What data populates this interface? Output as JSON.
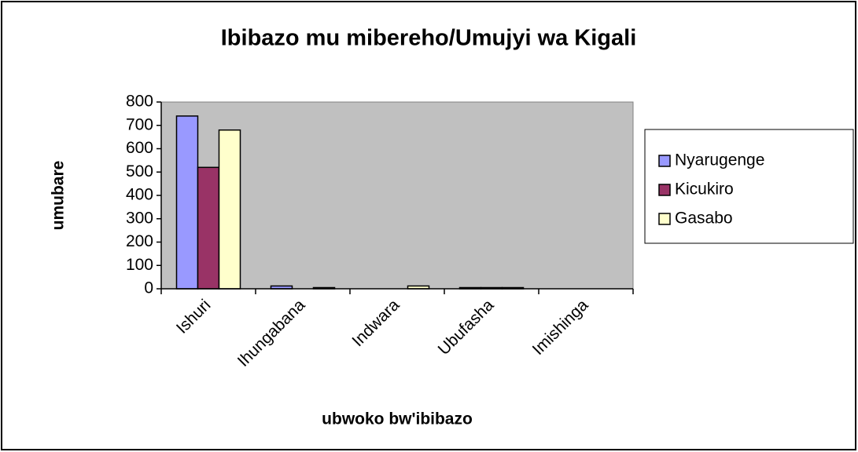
{
  "chart_data": {
    "type": "bar",
    "title": "Ibibazo mu mibereho/Umujyi wa Kigali",
    "x_label": "ubwoko bw'ibibazo",
    "y_label": "umubare",
    "categories": [
      "Ishuri",
      "Ihungabana",
      "Indwara",
      "Ubufasha",
      "Imishinga"
    ],
    "series": [
      {
        "name": "Nyarugenge",
        "color": "#9999ff",
        "values": [
          740,
          12,
          0,
          5,
          0
        ]
      },
      {
        "name": "Kicukiro",
        "color": "#993366",
        "values": [
          520,
          0,
          0,
          5,
          0
        ]
      },
      {
        "name": "Gasabo",
        "color": "#ffffcc",
        "values": [
          680,
          5,
          12,
          5,
          0
        ]
      }
    ],
    "ylim": [
      0,
      800
    ],
    "yticks": [
      0,
      100,
      200,
      300,
      400,
      500,
      600,
      700,
      800
    ],
    "legend": "right"
  }
}
